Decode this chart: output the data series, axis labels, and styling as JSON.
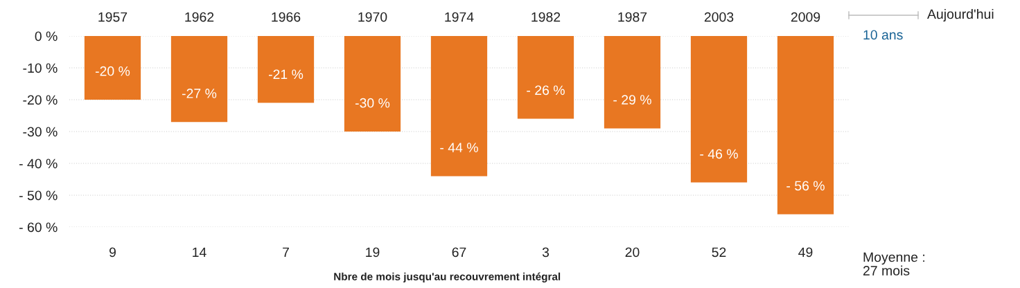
{
  "chart_data": {
    "type": "bar",
    "xlabel": "Nbre de mois jusqu'au recouvrement intégral",
    "categories": [
      "1957",
      "1962",
      "1966",
      "1970",
      "1974",
      "1982",
      "1987",
      "2003",
      "2009"
    ],
    "values": [
      -20,
      -27,
      -21,
      -30,
      -44,
      -26,
      -29,
      -46,
      -56
    ],
    "value_labels": [
      "-20 %",
      "-27 %",
      "-21 %",
      "-30 %",
      "- 44 %",
      "- 26 %",
      "- 29 %",
      "- 46 %",
      "- 56 %"
    ],
    "color": "#e87722",
    "ylim": [
      -60,
      0
    ],
    "yticks": [
      {
        "value": 0,
        "label": "0 %"
      },
      {
        "value": -10,
        "label": "-10 %"
      },
      {
        "value": -20,
        "label": "-20 %"
      },
      {
        "value": -30,
        "label": "-30 %"
      },
      {
        "value": -40,
        "label": "- 40 %"
      },
      {
        "value": -50,
        "label": "- 50 %"
      },
      {
        "value": -60,
        "label": "- 60 %"
      }
    ],
    "grid": "y",
    "annotations": [
      "Aujourd'hui",
      "10 ans",
      "Moyenne :\n27 mois",
      "9",
      "14",
      "7",
      "19",
      "67",
      "3",
      "20",
      "52",
      "49"
    ]
  }
}
